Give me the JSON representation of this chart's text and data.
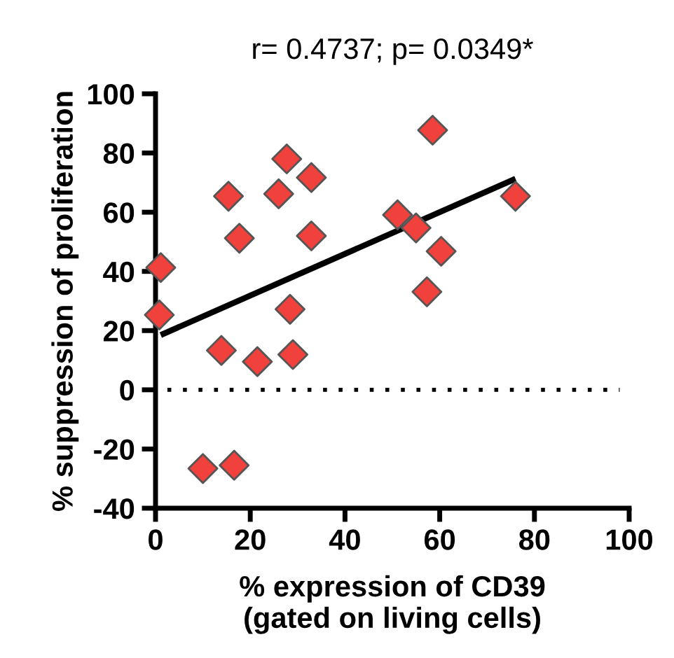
{
  "chart_data": {
    "type": "scatter",
    "title": "r= 0.4737; p= 0.0349*",
    "xlabel": "% expression of CD39\n(gated on living cells)",
    "ylabel": "% suppression of proliferation",
    "xlim": [
      0,
      100
    ],
    "xticks": [
      0,
      20,
      40,
      60,
      80,
      100
    ],
    "ylim": [
      -40,
      100
    ],
    "yticks": [
      -40,
      -20,
      0,
      20,
      40,
      60,
      80,
      100
    ],
    "grid": false,
    "legend": false,
    "marker": "diamond",
    "ref_lines": [
      {
        "axis": "y",
        "value": 0,
        "line_style": "dotted",
        "color": "#000000"
      }
    ],
    "series": [
      {
        "color": "#f0413c",
        "x": [
          1.1,
          0.8,
          15.4,
          17.7,
          13.9,
          21.5,
          10.0,
          16.6,
          27.7,
          26.0,
          32.9,
          32.9,
          28.4,
          29.0,
          51.1,
          55.0,
          60.3,
          57.3,
          58.5,
          76.0
        ],
        "values": [
          41.3,
          25.3,
          65.4,
          51.2,
          13.3,
          9.5,
          -26.6,
          -25.5,
          78.0,
          66.2,
          71.7,
          52.0,
          27.2,
          11.9,
          59.1,
          54.7,
          46.8,
          33.1,
          87.7,
          65.4
        ]
      },
      {
        "type": "line",
        "color": "#000000",
        "x": [
          1.1,
          76.0
        ],
        "values": [
          18.5,
          71.3
        ],
        "line_style": "solid",
        "marker": "none"
      }
    ]
  }
}
